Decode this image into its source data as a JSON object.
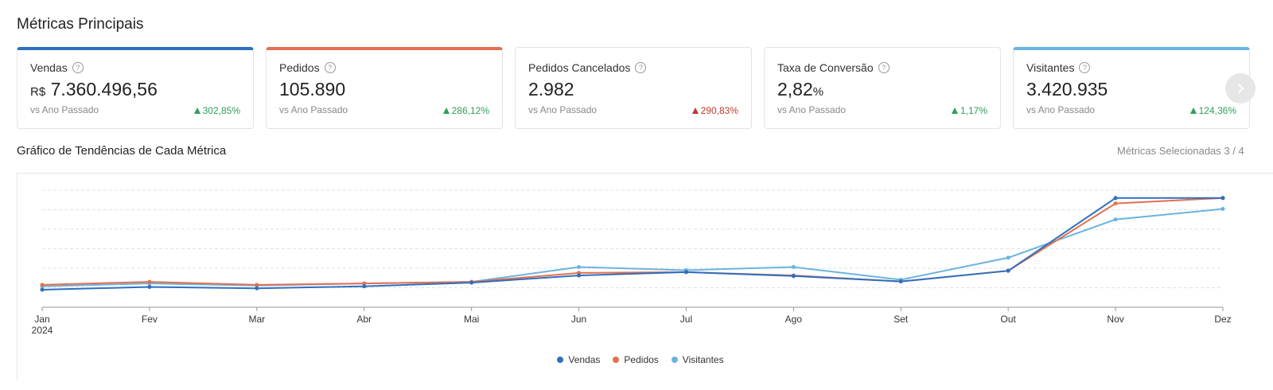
{
  "section_title": "Métricas Principais",
  "cards": [
    {
      "label": "Vendas",
      "prefix": "R$",
      "value": "7.360.496,56",
      "suffix": "",
      "compare": "vs Ano Passado",
      "delta": "302,85%",
      "trend": "up",
      "selected": true,
      "accent": "#2f6fc0",
      "delta_color": "#2e9e5b"
    },
    {
      "label": "Pedidos",
      "prefix": "",
      "value": "105.890",
      "suffix": "",
      "compare": "vs Ano Passado",
      "delta": "286,12%",
      "trend": "up",
      "selected": true,
      "accent": "#e4704f",
      "delta_color": "#2e9e5b"
    },
    {
      "label": "Pedidos Cancelados",
      "prefix": "",
      "value": "2.982",
      "suffix": "",
      "compare": "vs Ano Passado",
      "delta": "290,83%",
      "trend": "up",
      "selected": false,
      "accent": "",
      "delta_color": "#c0392b"
    },
    {
      "label": "Taxa de Conversão",
      "prefix": "",
      "value": "2,82",
      "suffix": "%",
      "compare": "vs Ano Passado",
      "delta": "1,17%",
      "trend": "up",
      "selected": false,
      "accent": "",
      "delta_color": "#2e9e5b"
    },
    {
      "label": "Visitantes",
      "prefix": "",
      "value": "3.420.935",
      "suffix": "",
      "compare": "vs Ano Passado",
      "delta": "124,36%",
      "trend": "up",
      "selected": true,
      "accent": "#6ab4e0",
      "delta_color": "#2e9e5b"
    }
  ],
  "icons": {
    "help": "question-circle-icon",
    "next": "chevron-right-icon",
    "trend_up": "triangle-up-icon"
  },
  "chart_section": {
    "title": "Gráfico de Tendências de Cada Métrica",
    "selected_text": "Métricas Selecionadas 3 / 4"
  },
  "chart_data": {
    "type": "line",
    "categories": [
      "Jan",
      "Fev",
      "Mar",
      "Abr",
      "Mai",
      "Jun",
      "Jul",
      "Ago",
      "Set",
      "Out",
      "Nov",
      "Dez"
    ],
    "x_sublabel": "2024",
    "y_axis_labels": "none",
    "ylim": [
      0,
      6
    ],
    "grid": true,
    "legend_position": "bottom",
    "series": [
      {
        "name": "Vendas",
        "color": "#2f6fc0",
        "values": [
          0.9,
          1.04,
          0.97,
          1.07,
          1.26,
          1.63,
          1.8,
          1.6,
          1.32,
          1.87,
          5.6,
          5.6
        ]
      },
      {
        "name": "Pedidos",
        "color": "#e4704f",
        "values": [
          1.15,
          1.3,
          1.15,
          1.22,
          1.3,
          1.76,
          1.8,
          1.63,
          1.32,
          1.87,
          5.32,
          5.6
        ]
      },
      {
        "name": "Visitantes",
        "color": "#6ab4e0",
        "values": [
          1.07,
          1.22,
          1.11,
          1.22,
          1.3,
          2.06,
          1.9,
          2.06,
          1.41,
          2.54,
          4.5,
          5.04
        ]
      }
    ]
  }
}
